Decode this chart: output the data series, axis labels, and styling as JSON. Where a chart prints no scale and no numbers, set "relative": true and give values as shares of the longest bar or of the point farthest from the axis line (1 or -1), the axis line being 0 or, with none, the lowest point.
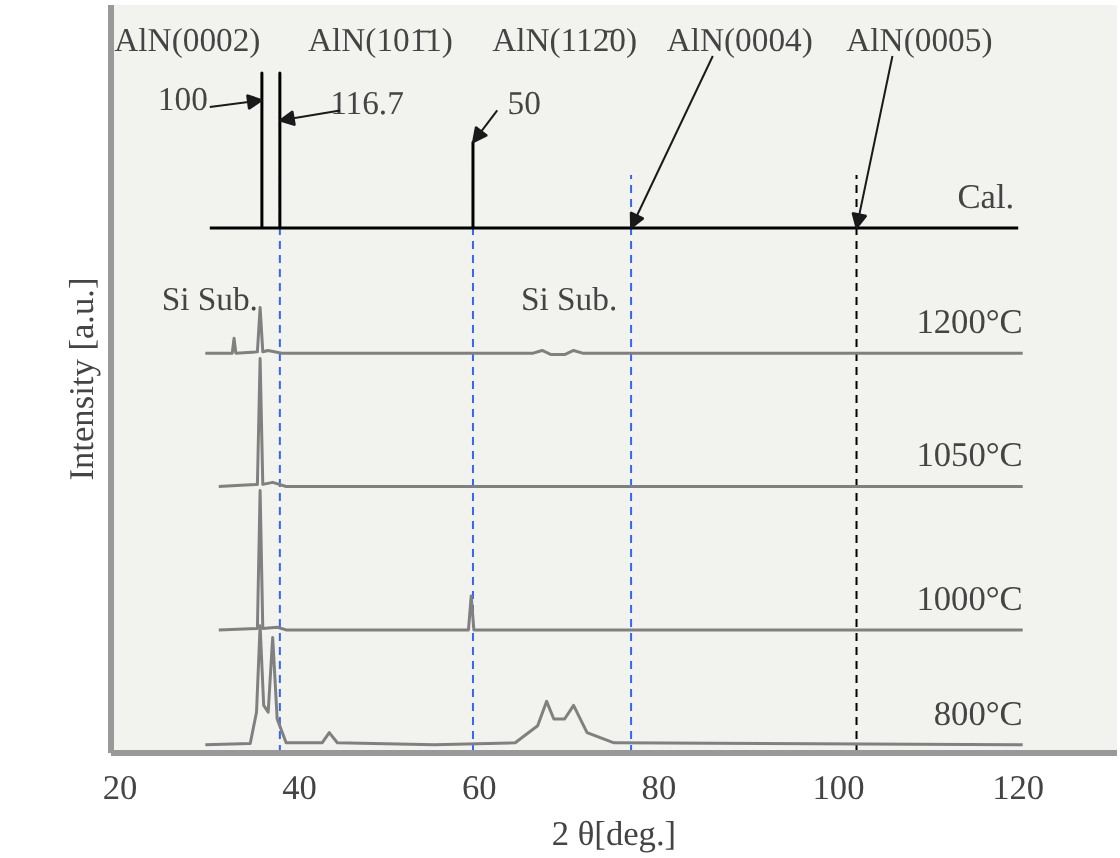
{
  "chart_data": {
    "type": "line",
    "relative": true,
    "xlabel": "2 θ[deg.]",
    "ylabel": "Intensity [a.u.]",
    "xlim": [
      19,
      131
    ],
    "xticks": [
      20,
      40,
      60,
      80,
      100,
      120
    ],
    "grid": false,
    "tick_labels": "x",
    "series": [
      {
        "name": "Cal.",
        "color": "#000000",
        "x": [
          30,
          35.8,
          35.8,
          35.8,
          37.8,
          37.8,
          37.8,
          59.3,
          59.3,
          59.3,
          120
        ],
        "values": [
          0.772,
          0.772,
          1.0,
          0.772,
          0.772,
          1.0,
          0.772,
          0.772,
          0.898,
          0.772,
          0.772
        ]
      },
      {
        "name": "1200°C",
        "color": "#808080",
        "x": [
          29.5,
          32.5,
          32.7,
          32.9,
          35.3,
          35.6,
          35.9,
          36.5,
          38,
          60,
          66,
          67,
          68,
          69.5,
          70.5,
          71.5,
          72.5,
          120.5
        ],
        "values": [
          0.588,
          0.588,
          0.61,
          0.588,
          0.59,
          0.655,
          0.59,
          0.592,
          0.588,
          0.588,
          0.588,
          0.592,
          0.586,
          0.586,
          0.592,
          0.588,
          0.588,
          0.588
        ]
      },
      {
        "name": "1050°C",
        "color": "#808080",
        "x": [
          31,
          34,
          35.3,
          35.6,
          35.9,
          37,
          38.5,
          60,
          120.5
        ],
        "values": [
          0.392,
          0.394,
          0.395,
          0.58,
          0.395,
          0.398,
          0.392,
          0.392,
          0.392
        ]
      },
      {
        "name": "1000°C",
        "color": "#808080",
        "x": [
          31,
          35.3,
          35.6,
          35.9,
          37.5,
          38.5,
          58.8,
          59.1,
          59.4,
          66,
          69,
          120.5
        ],
        "values": [
          0.181,
          0.183,
          0.386,
          0.183,
          0.185,
          0.181,
          0.181,
          0.231,
          0.181,
          0.181,
          0.181,
          0.181
        ]
      },
      {
        "name": "800°C",
        "color": "#808080",
        "x": [
          29.5,
          34.5,
          35.2,
          35.6,
          36.0,
          36.5,
          37.0,
          37.5,
          38.5,
          42.5,
          43.3,
          44.2,
          55,
          64,
          66.5,
          67.5,
          68.3,
          69.5,
          70.5,
          72,
          75,
          120.5
        ],
        "values": [
          0.012,
          0.014,
          0.06,
          0.187,
          0.07,
          0.06,
          0.17,
          0.05,
          0.015,
          0.015,
          0.03,
          0.015,
          0.012,
          0.015,
          0.04,
          0.076,
          0.05,
          0.05,
          0.07,
          0.03,
          0.015,
          0.012
        ]
      }
    ],
    "ref_lines": [
      {
        "axis": "x",
        "value": 37.8,
        "color": "#3366ff",
        "line_style": "dashed"
      },
      {
        "axis": "x",
        "value": 59.3,
        "color": "#3366ff",
        "line_style": "dashed"
      },
      {
        "axis": "x",
        "value": 76.9,
        "color": "#3366ff",
        "line_style": "dashed"
      },
      {
        "axis": "x",
        "value": 102,
        "color": "#000000",
        "line_style": "dashed"
      }
    ],
    "annotations": [
      {
        "text": "AlN(0002)",
        "x": 35.8,
        "y": 1.0
      },
      {
        "text": "100",
        "x": 35.8,
        "y": 0.96
      },
      {
        "text": "AlN(101̄1)",
        "x": 37.8,
        "y": 1.0
      },
      {
        "text": "116.7",
        "x": 37.8,
        "y": 0.93
      },
      {
        "text": "AlN(112̄0)",
        "x": 59.3,
        "y": 0.898
      },
      {
        "text": "50",
        "x": 59.3,
        "y": 0.898
      },
      {
        "text": "AlN(0004)",
        "x": 76.9,
        "y": 0.772
      },
      {
        "text": "AlN(0005)",
        "x": 102,
        "y": 0.772
      },
      {
        "text": "Si Sub.",
        "x": 32.7,
        "y": 0.61
      },
      {
        "text": "Si Sub.",
        "x": 69,
        "y": 0.6
      }
    ]
  }
}
